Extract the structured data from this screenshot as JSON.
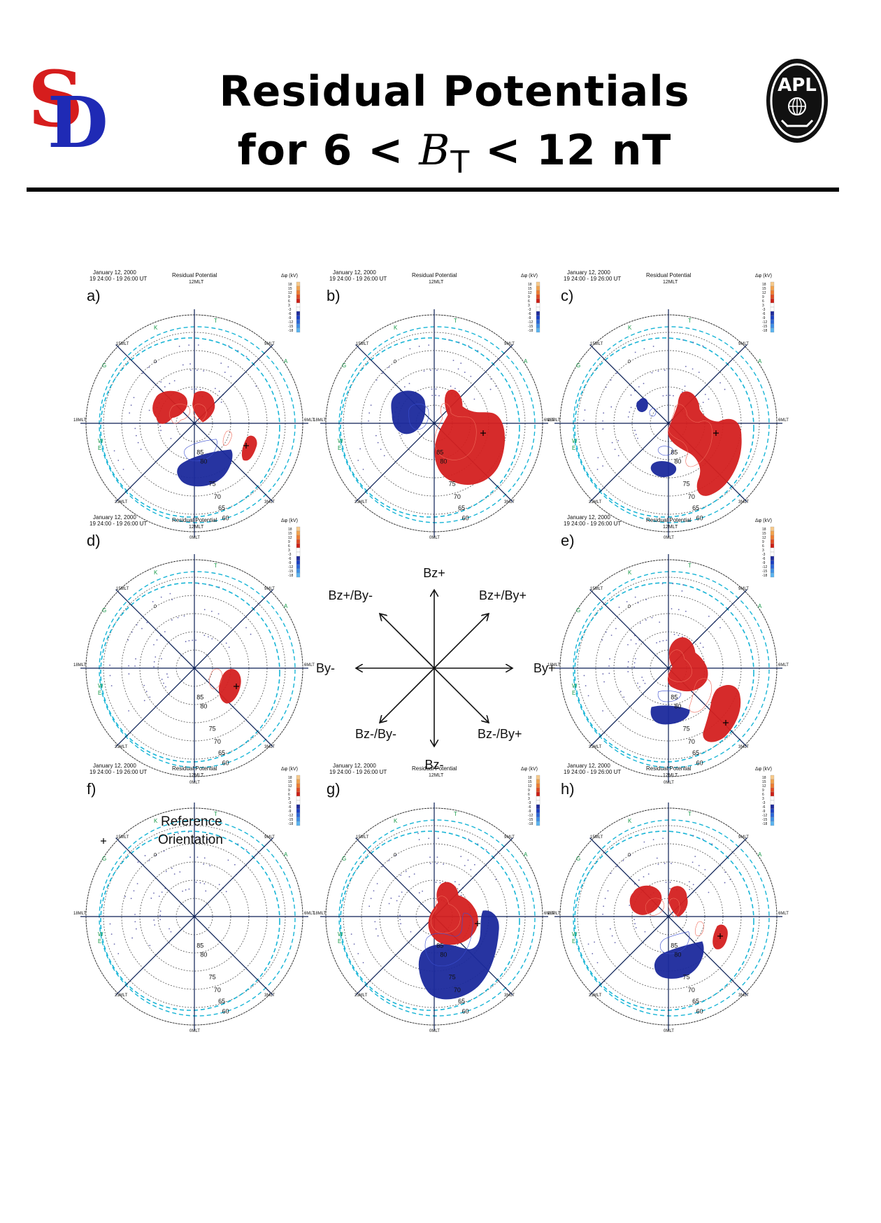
{
  "header": {
    "title_line1": "Residual Potentials",
    "title_prefix": "for 6 <",
    "title_var": "B",
    "title_sub": "T",
    "title_suffix": "< 12 nT",
    "logo_left_text": "SD",
    "logo_right_text": "APL"
  },
  "panel_common": {
    "date": "January 12, 2000",
    "time": "19 24:00 - 19 26:00 UT",
    "title": "Residual Potential",
    "mlt_top": "12MLT",
    "mlt_left": "18MLT",
    "mlt_right": "6MLT",
    "mlt_bottom": "0MLT",
    "mlt_tl": "15MLT",
    "mlt_tr": "9MLT",
    "mlt_bl": "21MLT",
    "mlt_br": "3MLT",
    "lat_labels": [
      "85",
      "80",
      "75",
      "70",
      "65",
      "60"
    ],
    "station_letters": [
      "K",
      "T",
      "G",
      "A",
      "W",
      "E"
    ],
    "zero_label": "0",
    "colorbar_title": "Δφ (kV)",
    "colorbar_ticks": [
      "18",
      "15",
      "12",
      "9",
      "6",
      "3",
      "-3",
      "-6",
      "-9",
      "-12",
      "-15",
      "-18"
    ]
  },
  "panels": [
    {
      "label": "a)"
    },
    {
      "label": "b)"
    },
    {
      "label": "c)"
    },
    {
      "label": "d)"
    },
    {
      "label": "e)"
    },
    {
      "label": "f)",
      "reference": [
        "Reference",
        "Orientation"
      ]
    },
    {
      "label": "g)"
    },
    {
      "label": "h)"
    }
  ],
  "directions": {
    "up": "Bz+",
    "down": "Bz-",
    "left": "By-",
    "right": "By+",
    "up_left": "Bz+/By-",
    "up_right": "Bz+/By+",
    "down_left": "Bz-/By-",
    "down_right": "Bz-/By+"
  },
  "colors": {
    "positive": "#d42020",
    "negative": "#1c2a9c",
    "grid": "#555555",
    "dashed_circle": "#19b5d6",
    "station": "#1a9a4a",
    "spokes": "#0a1f55"
  }
}
